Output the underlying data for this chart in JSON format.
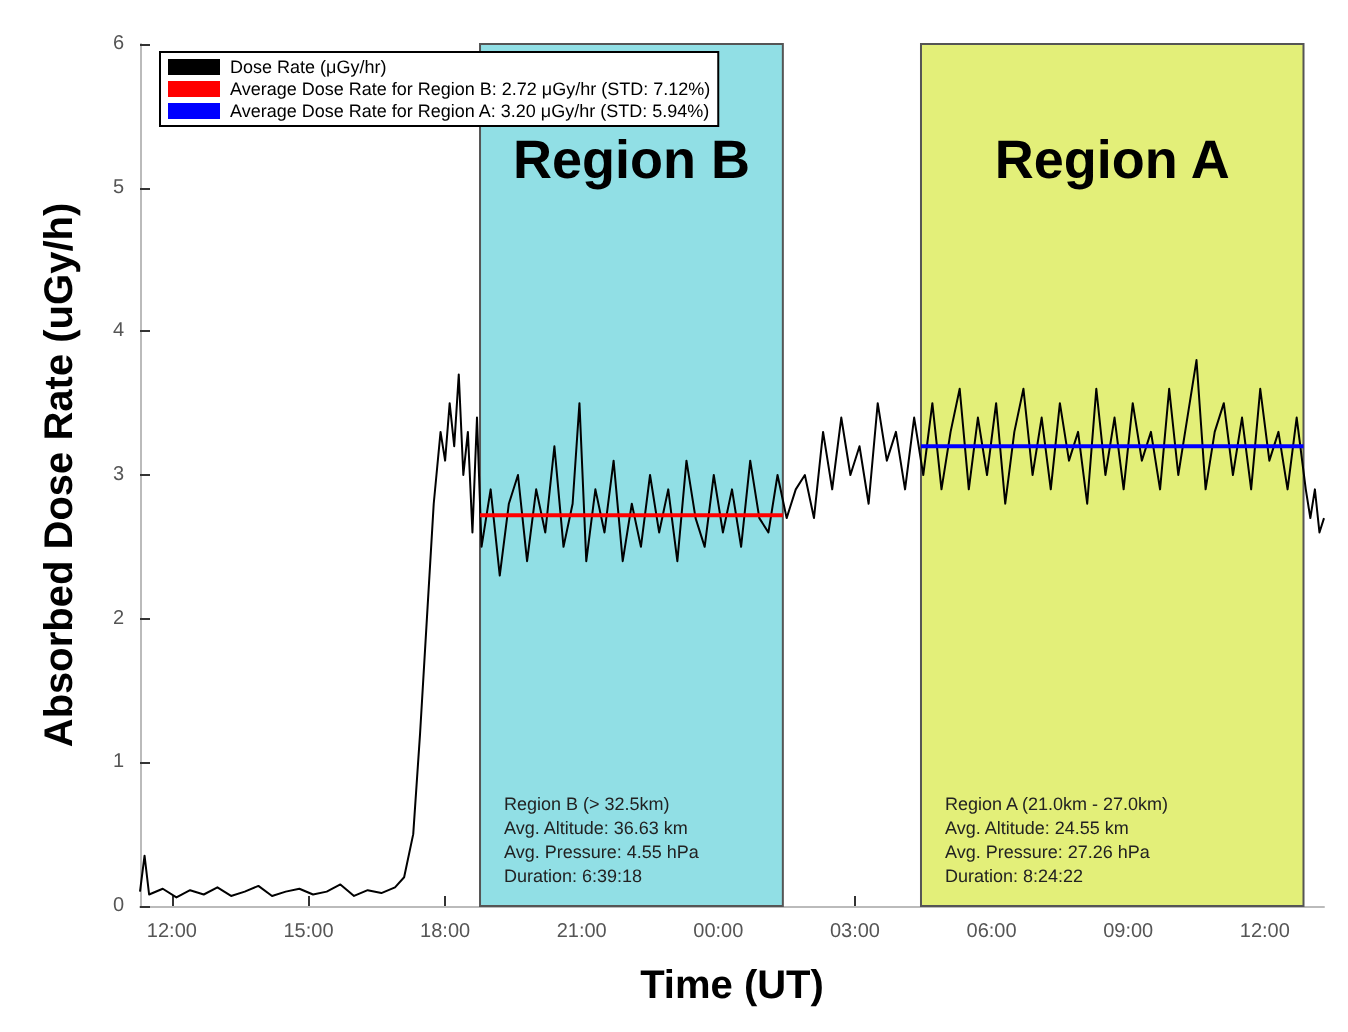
{
  "chart_data": {
    "type": "line",
    "xlabel": "Time (UT)",
    "ylabel": "Absorbed Dose Rate (uGy/h)",
    "xlim": [
      "2000-01-01T11:18",
      "2000-01-02T13:18"
    ],
    "ylim": [
      0,
      6
    ],
    "xticks": [
      {
        "value": "2000-01-01T12:00",
        "label": "12:00"
      },
      {
        "value": "2000-01-01T15:00",
        "label": "15:00"
      },
      {
        "value": "2000-01-01T18:00",
        "label": "18:00"
      },
      {
        "value": "2000-01-01T21:00",
        "label": "21:00"
      },
      {
        "value": "2000-01-02T00:00",
        "label": "00:00"
      },
      {
        "value": "2000-01-02T03:00",
        "label": "03:00"
      },
      {
        "value": "2000-01-02T06:00",
        "label": "06:00"
      },
      {
        "value": "2000-01-02T09:00",
        "label": "09:00"
      },
      {
        "value": "2000-01-02T12:00",
        "label": "12:00"
      }
    ],
    "yticks": [
      0,
      1,
      2,
      3,
      4,
      5,
      6
    ],
    "grid": false,
    "legend": "top left",
    "marker": "none",
    "line_style": "solid",
    "series": [
      {
        "name": "Dose Rate (μGy/hr)",
        "color": "#000000",
        "x": [
          "2000-01-01T11:18",
          "2000-01-01T11:24",
          "2000-01-01T11:30",
          "2000-01-01T11:48",
          "2000-01-01T12:06",
          "2000-01-01T12:24",
          "2000-01-01T12:42",
          "2000-01-01T13:00",
          "2000-01-01T13:18",
          "2000-01-01T13:36",
          "2000-01-01T13:54",
          "2000-01-01T14:12",
          "2000-01-01T14:30",
          "2000-01-01T14:48",
          "2000-01-01T15:06",
          "2000-01-01T15:24",
          "2000-01-01T15:42",
          "2000-01-01T16:00",
          "2000-01-01T16:18",
          "2000-01-01T16:36",
          "2000-01-01T16:54",
          "2000-01-01T17:06",
          "2000-01-01T17:18",
          "2000-01-01T17:27",
          "2000-01-01T17:36",
          "2000-01-01T17:45",
          "2000-01-01T17:54",
          "2000-01-01T18:00",
          "2000-01-01T18:06",
          "2000-01-01T18:12",
          "2000-01-01T18:18",
          "2000-01-01T18:24",
          "2000-01-01T18:30",
          "2000-01-01T18:36",
          "2000-01-01T18:42",
          "2000-01-01T18:48",
          "2000-01-01T19:00",
          "2000-01-01T19:12",
          "2000-01-01T19:24",
          "2000-01-01T19:36",
          "2000-01-01T19:48",
          "2000-01-01T20:00",
          "2000-01-01T20:12",
          "2000-01-01T20:24",
          "2000-01-01T20:36",
          "2000-01-01T20:48",
          "2000-01-01T20:57",
          "2000-01-01T21:06",
          "2000-01-01T21:18",
          "2000-01-01T21:30",
          "2000-01-01T21:42",
          "2000-01-01T21:54",
          "2000-01-01T22:06",
          "2000-01-01T22:18",
          "2000-01-01T22:30",
          "2000-01-01T22:42",
          "2000-01-01T22:54",
          "2000-01-01T23:06",
          "2000-01-01T23:18",
          "2000-01-01T23:30",
          "2000-01-01T23:42",
          "2000-01-01T23:54",
          "2000-01-02T00:06",
          "2000-01-02T00:18",
          "2000-01-02T00:30",
          "2000-01-02T00:42",
          "2000-01-02T00:54",
          "2000-01-02T01:06",
          "2000-01-02T01:18",
          "2000-01-02T01:30",
          "2000-01-02T01:42",
          "2000-01-02T01:54",
          "2000-01-02T02:06",
          "2000-01-02T02:18",
          "2000-01-02T02:30",
          "2000-01-02T02:42",
          "2000-01-02T02:54",
          "2000-01-02T03:06",
          "2000-01-02T03:18",
          "2000-01-02T03:30",
          "2000-01-02T03:42",
          "2000-01-02T03:54",
          "2000-01-02T04:06",
          "2000-01-02T04:18",
          "2000-01-02T04:30",
          "2000-01-02T04:42",
          "2000-01-02T04:54",
          "2000-01-02T05:06",
          "2000-01-02T05:18",
          "2000-01-02T05:30",
          "2000-01-02T05:42",
          "2000-01-02T05:54",
          "2000-01-02T06:06",
          "2000-01-02T06:18",
          "2000-01-02T06:30",
          "2000-01-02T06:42",
          "2000-01-02T06:54",
          "2000-01-02T07:06",
          "2000-01-02T07:18",
          "2000-01-02T07:30",
          "2000-01-02T07:42",
          "2000-01-02T07:54",
          "2000-01-02T08:06",
          "2000-01-02T08:18",
          "2000-01-02T08:30",
          "2000-01-02T08:42",
          "2000-01-02T08:54",
          "2000-01-02T09:06",
          "2000-01-02T09:18",
          "2000-01-02T09:30",
          "2000-01-02T09:42",
          "2000-01-02T09:54",
          "2000-01-02T10:06",
          "2000-01-02T10:18",
          "2000-01-02T10:30",
          "2000-01-02T10:42",
          "2000-01-02T10:54",
          "2000-01-02T11:06",
          "2000-01-02T11:18",
          "2000-01-02T11:30",
          "2000-01-02T11:42",
          "2000-01-02T11:54",
          "2000-01-02T12:06",
          "2000-01-02T12:18",
          "2000-01-02T12:30",
          "2000-01-02T12:42",
          "2000-01-02T12:54",
          "2000-01-02T13:00",
          "2000-01-02T13:06",
          "2000-01-02T13:12",
          "2000-01-02T13:18"
        ],
        "values": [
          0.1,
          0.35,
          0.08,
          0.12,
          0.06,
          0.11,
          0.08,
          0.13,
          0.07,
          0.1,
          0.14,
          0.07,
          0.1,
          0.12,
          0.08,
          0.1,
          0.15,
          0.07,
          0.11,
          0.09,
          0.13,
          0.2,
          0.5,
          1.2,
          2.0,
          2.8,
          3.3,
          3.1,
          3.5,
          3.2,
          3.7,
          3.0,
          3.3,
          2.6,
          3.4,
          2.5,
          2.9,
          2.3,
          2.8,
          3.0,
          2.4,
          2.9,
          2.6,
          3.2,
          2.5,
          2.8,
          3.5,
          2.4,
          2.9,
          2.6,
          3.1,
          2.4,
          2.8,
          2.5,
          3.0,
          2.6,
          2.9,
          2.4,
          3.1,
          2.7,
          2.5,
          3.0,
          2.6,
          2.9,
          2.5,
          3.1,
          2.7,
          2.6,
          3.0,
          2.7,
          2.9,
          3.0,
          2.7,
          3.3,
          2.9,
          3.4,
          3.0,
          3.2,
          2.8,
          3.5,
          3.1,
          3.3,
          2.9,
          3.4,
          3.0,
          3.5,
          2.9,
          3.3,
          3.6,
          2.9,
          3.4,
          3.0,
          3.5,
          2.8,
          3.3,
          3.6,
          3.0,
          3.4,
          2.9,
          3.5,
          3.1,
          3.3,
          2.8,
          3.6,
          3.0,
          3.4,
          2.9,
          3.5,
          3.1,
          3.3,
          2.9,
          3.6,
          3.0,
          3.4,
          3.8,
          2.9,
          3.3,
          3.5,
          3.0,
          3.4,
          2.9,
          3.6,
          3.1,
          3.3,
          2.9,
          3.4,
          2.9,
          2.7,
          2.9,
          2.6,
          2.7
        ]
      },
      {
        "name": "Average Dose Rate for Region B: 2.72 μGy/hr (STD: 7.12%)",
        "color": "#ff0000",
        "x": [
          "2000-01-01T18:46",
          "2000-01-02T01:25"
        ],
        "values": [
          2.72,
          2.72
        ]
      },
      {
        "name": "Average Dose Rate for Region A: 3.20 μGy/hr (STD: 5.94%)",
        "color": "#0000ff",
        "x": [
          "2000-01-02T04:27",
          "2000-01-02T12:51"
        ],
        "values": [
          3.2,
          3.2
        ]
      }
    ],
    "bands": [
      {
        "axis": "x",
        "from": "2000-01-01T18:46",
        "to": "2000-01-02T01:25",
        "label": "Region B",
        "color": "#91dfe5"
      },
      {
        "axis": "x",
        "from": "2000-01-02T04:27",
        "to": "2000-01-02T12:51",
        "label": "Region A",
        "color": "#e3ef79"
      }
    ],
    "annotations": [
      "Region B (> 32.5km)\nAvg. Altitude: 36.63 km\nAvg. Pressure: 4.55 hPa\nDuration: 6:39:18",
      "Region A (21.0km - 27.0km)\nAvg. Altitude: 24.55 km\nAvg. Pressure: 27.26 hPa\nDuration: 8:24:22"
    ]
  }
}
